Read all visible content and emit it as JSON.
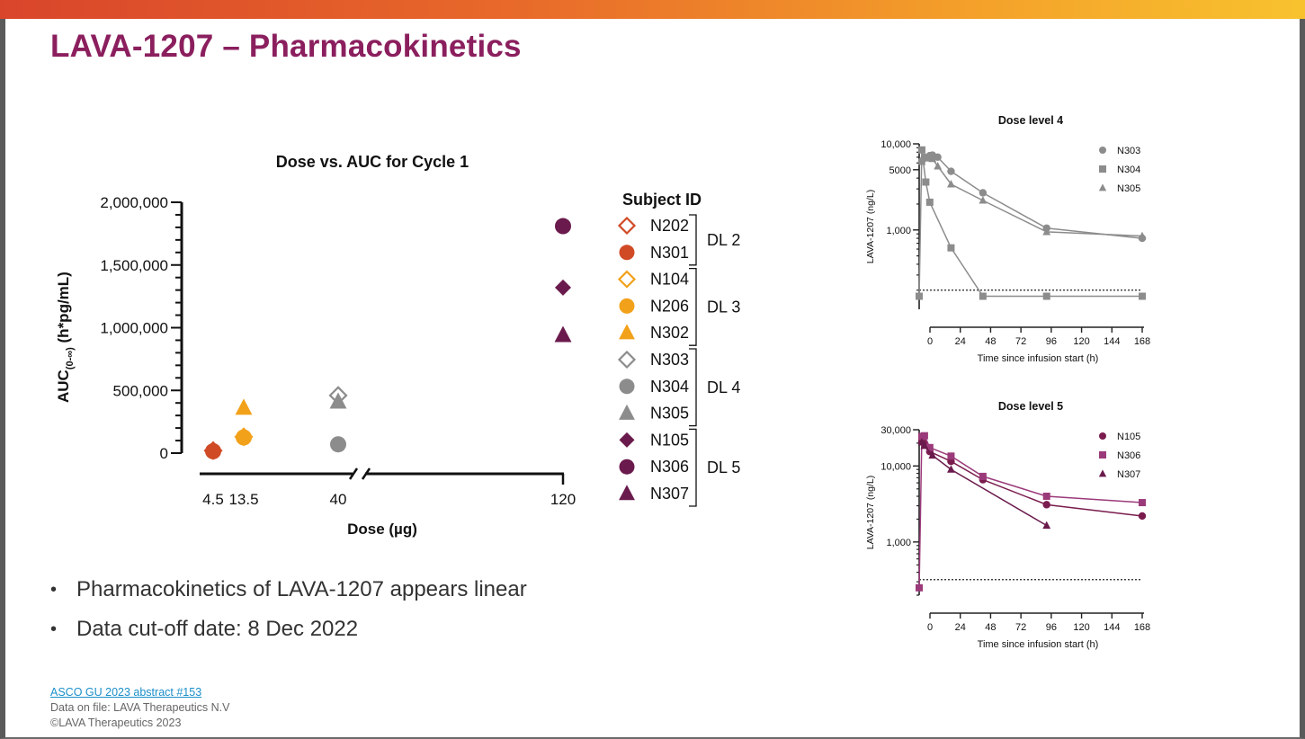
{
  "page": {
    "title": "LAVA-1207 – Pharmacokinetics"
  },
  "colors": {
    "accent": "#8b1f5e",
    "dl2": "#d04a25",
    "dl3": "#f2a11a",
    "dl4": "#8c8c8c",
    "dl5": "#6a1a4c"
  },
  "bullets": [
    "Pharmacokinetics of LAVA-1207 appears linear",
    "Data cut-off date: 8 Dec 2022"
  ],
  "footer": {
    "link": "ASCO GU 2023 abstract #153",
    "line2": "Data on file: LAVA Therapeutics N.V",
    "line3": "©LAVA Therapeutics 2023"
  },
  "chart_data": [
    {
      "type": "scatter",
      "title": "Dose vs. AUC for Cycle 1",
      "xlabel": "Dose (µg)",
      "ylabel_main": "AUC",
      "ylabel_sub": "(0-∞)",
      "ylabel_rest": " (h*pg/mL)",
      "ylim": [
        0,
        2000000
      ],
      "y_ticks": [
        0,
        500000,
        1000000,
        1500000,
        2000000
      ],
      "y_tick_labels": [
        "0",
        "500,000",
        "1,000,000",
        "1,500,000",
        "2,000,000"
      ],
      "x_ticks": [
        4.5,
        13.5,
        40,
        120
      ],
      "x_tick_labels": [
        "4.5",
        "13.5",
        "40",
        "120"
      ],
      "x_axis_break": true,
      "legend_title": "Subject ID",
      "series": [
        {
          "name": "N202",
          "group": "DL 2",
          "marker": "diamond-open",
          "color": "#d04a25",
          "x": 4.5,
          "y": 20000
        },
        {
          "name": "N301",
          "group": "DL 2",
          "marker": "circle",
          "color": "#d04a25",
          "x": 4.5,
          "y": 15000
        },
        {
          "name": "N104",
          "group": "DL 3",
          "marker": "diamond-open",
          "color": "#f2a11a",
          "x": 13.5,
          "y": 130000
        },
        {
          "name": "N206",
          "group": "DL 3",
          "marker": "circle",
          "color": "#f2a11a",
          "x": 13.5,
          "y": 125000
        },
        {
          "name": "N302",
          "group": "DL 3",
          "marker": "triangle",
          "color": "#f2a11a",
          "x": 13.5,
          "y": 360000
        },
        {
          "name": "N303",
          "group": "DL 4",
          "marker": "diamond-open",
          "color": "#8c8c8c",
          "x": 40,
          "y": 460000
        },
        {
          "name": "N304",
          "group": "DL 4",
          "marker": "circle",
          "color": "#8c8c8c",
          "x": 40,
          "y": 70000
        },
        {
          "name": "N305",
          "group": "DL 4",
          "marker": "triangle",
          "color": "#8c8c8c",
          "x": 40,
          "y": 410000
        },
        {
          "name": "N105",
          "group": "DL 5",
          "marker": "diamond",
          "color": "#6a1a4c",
          "x": 120,
          "y": 1320000
        },
        {
          "name": "N306",
          "group": "DL 5",
          "marker": "circle",
          "color": "#6a1a4c",
          "x": 120,
          "y": 1810000
        },
        {
          "name": "N307",
          "group": "DL 5",
          "marker": "triangle",
          "color": "#6a1a4c",
          "x": 120,
          "y": 940000
        }
      ],
      "groups": [
        "DL 2",
        "DL 3",
        "DL 4",
        "DL 5"
      ]
    },
    {
      "type": "line",
      "title": "Dose level 4",
      "xlabel": "Time since infusion start (h)",
      "ylabel": "LAVA-1207 (ng/L)",
      "y_scale": "log",
      "ylim": [
        120,
        10000
      ],
      "y_ticks": [
        1000,
        5000,
        10000
      ],
      "y_tick_labels": [
        "1,000",
        "5000",
        "10,000"
      ],
      "xlim": [
        0,
        168
      ],
      "x_ticks": [
        0,
        24,
        48,
        72,
        96,
        120,
        144,
        168
      ],
      "lloq": 200,
      "color": "#8c8c8c",
      "series": [
        {
          "name": "N303",
          "marker": "circle",
          "x": [
            2,
            4,
            8,
            10,
            14,
            24,
            48,
            96,
            168
          ],
          "y": [
            6300,
            7000,
            7300,
            7400,
            7000,
            4800,
            2700,
            1050,
            800
          ]
        },
        {
          "name": "N304",
          "marker": "square",
          "x": [
            0,
            2,
            5,
            8,
            24,
            48,
            96,
            168
          ],
          "y": [
            170,
            8500,
            3600,
            2100,
            620,
            170,
            170,
            170
          ]
        },
        {
          "name": "N305",
          "marker": "triangle",
          "x": [
            2,
            6,
            10,
            14,
            24,
            48,
            96,
            168
          ],
          "y": [
            6200,
            6800,
            6700,
            5500,
            3400,
            2200,
            950,
            850
          ]
        }
      ]
    },
    {
      "type": "line",
      "title": "Dose level 5",
      "xlabel": "Time since infusion start (h)",
      "ylabel": "LAVA-1207 (ng/L)",
      "y_scale": "log",
      "ylim": [
        200,
        30000
      ],
      "y_ticks": [
        1000,
        10000,
        30000
      ],
      "y_tick_labels": [
        "1,000",
        "10,000",
        "30,000"
      ],
      "xlim": [
        0,
        168
      ],
      "x_ticks": [
        0,
        24,
        48,
        72,
        96,
        120,
        144,
        168
      ],
      "lloq": 320,
      "series": [
        {
          "name": "N105",
          "marker": "circle",
          "color": "#7a1c4e",
          "x": [
            2,
            4,
            8,
            24,
            48,
            96,
            168
          ],
          "y": [
            21000,
            20000,
            15500,
            11500,
            6600,
            3100,
            2200
          ]
        },
        {
          "name": "N306",
          "marker": "square",
          "color": "#9b3a7a",
          "x": [
            0,
            2,
            4,
            8,
            24,
            48,
            96,
            168
          ],
          "y": [
            250,
            24500,
            25000,
            17500,
            13500,
            7300,
            4000,
            3300
          ]
        },
        {
          "name": "N307",
          "marker": "triangle",
          "color": "#6a1a4c",
          "x": [
            2,
            4,
            10,
            24,
            96
          ],
          "y": [
            20500,
            18500,
            13800,
            9000,
            1650
          ]
        }
      ]
    }
  ]
}
